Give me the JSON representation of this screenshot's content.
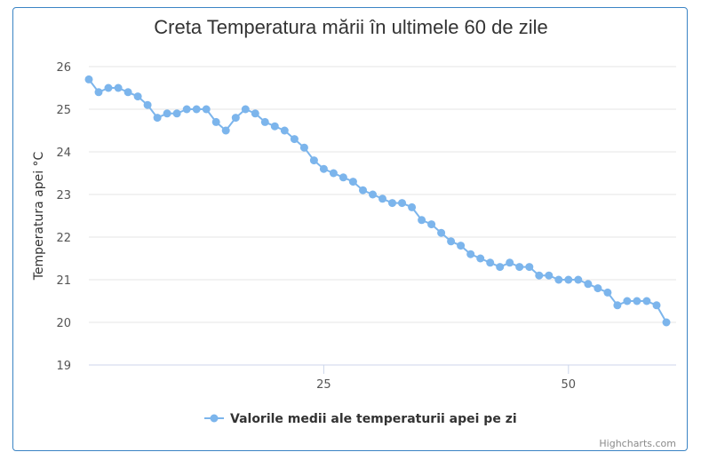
{
  "colors": {
    "series": "#7cb5ec",
    "grid": "#e6e6e6",
    "axis": "#ccd6eb",
    "border": "#3b84c4"
  },
  "credits": "Highcharts.com",
  "chart_data": {
    "type": "line",
    "title": "Creta Temperatura mării în ultimele 60 de zile",
    "ylabel": "Temperatura apei °C",
    "xlabel": "",
    "xlim": [
      1,
      61
    ],
    "ylim": [
      19,
      26
    ],
    "xticks": [
      25,
      50
    ],
    "yticks": [
      19,
      20,
      21,
      22,
      23,
      24,
      25,
      26
    ],
    "grid": true,
    "legend": "bottom-center",
    "series": [
      {
        "name": "Valorile medii ale temperaturii apei pe zi",
        "x": [
          1,
          2,
          3,
          4,
          5,
          6,
          7,
          8,
          9,
          10,
          11,
          12,
          13,
          14,
          15,
          16,
          17,
          18,
          19,
          20,
          21,
          22,
          23,
          24,
          25,
          26,
          27,
          28,
          29,
          30,
          31,
          32,
          33,
          34,
          35,
          36,
          37,
          38,
          39,
          40,
          41,
          42,
          43,
          44,
          45,
          46,
          47,
          48,
          49,
          50,
          51,
          52,
          53,
          54,
          55,
          56,
          57,
          58,
          59,
          60
        ],
        "values": [
          25.7,
          25.4,
          25.5,
          25.5,
          25.4,
          25.3,
          25.1,
          24.8,
          24.9,
          24.9,
          25.0,
          25.0,
          25.0,
          24.7,
          24.5,
          24.8,
          25.0,
          24.9,
          24.7,
          24.6,
          24.5,
          24.3,
          24.1,
          23.8,
          23.6,
          23.5,
          23.4,
          23.3,
          23.1,
          23.0,
          22.9,
          22.8,
          22.8,
          22.7,
          22.4,
          22.3,
          22.1,
          21.9,
          21.8,
          21.6,
          21.5,
          21.4,
          21.3,
          21.4,
          21.3,
          21.3,
          21.1,
          21.1,
          21.0,
          21.0,
          21.0,
          20.9,
          20.8,
          20.7,
          20.4,
          20.5,
          20.5,
          20.5,
          20.4,
          20.0
        ]
      }
    ]
  }
}
